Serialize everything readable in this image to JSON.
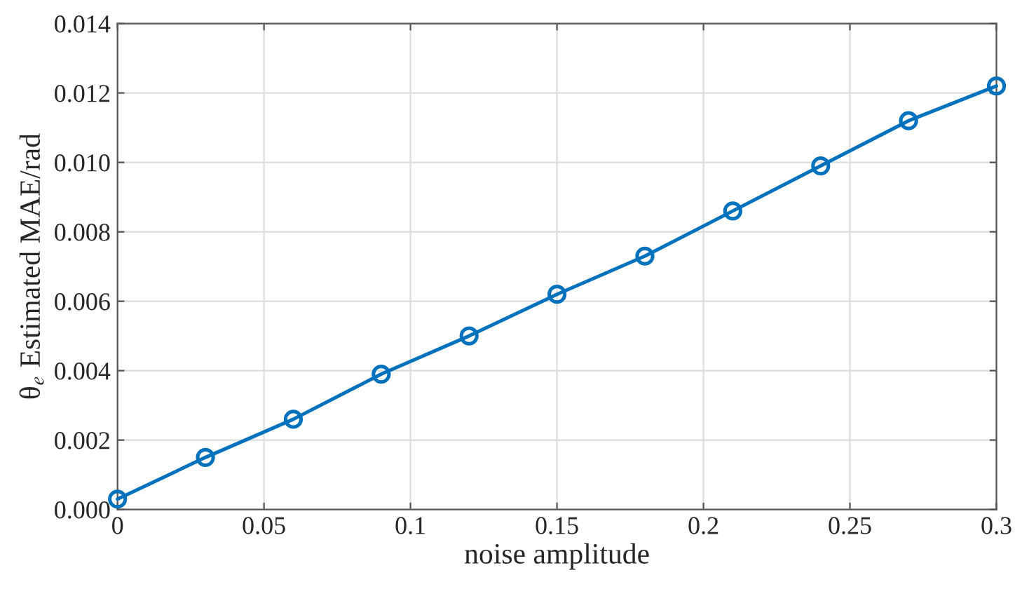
{
  "chart_data": {
    "type": "line",
    "xlabel": "noise amplitude",
    "ylabel": "θ$_{e}$ Estimated MAE/rad",
    "x": [
      0,
      0.03,
      0.06,
      0.09,
      0.12,
      0.15,
      0.18,
      0.21,
      0.24,
      0.27,
      0.3
    ],
    "series": [
      {
        "color": "#0072bd",
        "values": [
          0.0003,
          0.0015,
          0.0026,
          0.0039,
          0.005,
          0.0062,
          0.0073,
          0.0086,
          0.0099,
          0.0112,
          0.0122
        ]
      }
    ],
    "xlim": [
      0,
      0.3
    ],
    "xticks": [
      0,
      0.05,
      0.1,
      0.15,
      0.2,
      0.25,
      0.3
    ],
    "ylim": [
      0,
      0.014
    ],
    "yticks": [
      {
        "value": 0,
        "label": "0.000"
      },
      {
        "value": 0.002,
        "label": "0.002"
      },
      {
        "value": 0.004,
        "label": "0.004"
      },
      {
        "value": 0.006,
        "label": "0.006"
      },
      {
        "value": 0.008,
        "label": "0.008"
      },
      {
        "value": 0.01,
        "label": "0.010"
      },
      {
        "value": 0.012,
        "label": "0.012"
      },
      {
        "value": 0.014,
        "label": "0.014"
      }
    ],
    "grid": true,
    "marker": "circle",
    "line_style": "solid"
  }
}
